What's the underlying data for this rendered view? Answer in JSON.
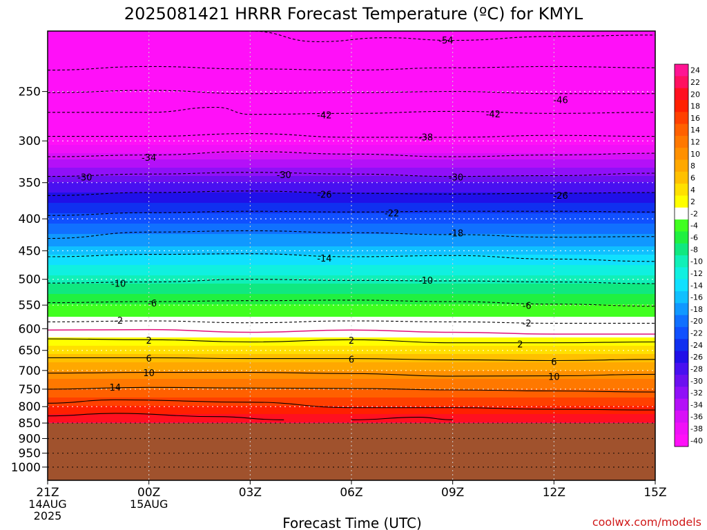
{
  "chart_data": {
    "type": "heatmap",
    "title": "2025081421 HRRR Forecast Temperature (ºC) for KMYL",
    "xlabel": "Forecast Time (UTC)",
    "ylabel": "",
    "y_scale": "log",
    "y_inverted": true,
    "ylim": [
      1050,
      200
    ],
    "xlim": [
      0,
      18
    ],
    "x_ticks": [
      {
        "hour": 0,
        "label": "21Z",
        "sub1": "14AUG",
        "sub2": "2025"
      },
      {
        "hour": 3,
        "label": "00Z",
        "sub1": "15AUG",
        "sub2": ""
      },
      {
        "hour": 6,
        "label": "03Z",
        "sub1": "",
        "sub2": ""
      },
      {
        "hour": 9,
        "label": "06Z",
        "sub1": "",
        "sub2": ""
      },
      {
        "hour": 12,
        "label": "09Z",
        "sub1": "",
        "sub2": ""
      },
      {
        "hour": 15,
        "label": "12Z",
        "sub1": "",
        "sub2": ""
      },
      {
        "hour": 18,
        "label": "15Z",
        "sub1": "",
        "sub2": ""
      }
    ],
    "y_ticks": [
      250,
      300,
      350,
      400,
      450,
      500,
      550,
      600,
      650,
      700,
      750,
      800,
      850,
      900,
      950,
      1000
    ],
    "grid": true,
    "surface_pressure_hpa": 850,
    "surface_color": "#a0522d",
    "temperature_profile": {
      "pressure": [
        200,
        250,
        300,
        350,
        400,
        450,
        500,
        550,
        600,
        650,
        700,
        750,
        800,
        850
      ],
      "temperature": [
        -55,
        -47,
        -39,
        -28,
        -21,
        -15,
        -9,
        -4,
        0,
        5,
        10,
        14,
        18,
        22
      ]
    },
    "contours": [
      {
        "level": -54,
        "style": "dashed",
        "points": [
          [
            6,
            200
          ],
          [
            8,
            208
          ],
          [
            10,
            205
          ],
          [
            12,
            207
          ],
          [
            15,
            204
          ],
          [
            18,
            203
          ]
        ]
      },
      {
        "level": -50,
        "style": "dashed",
        "points": [
          [
            0,
            231
          ],
          [
            3,
            228
          ],
          [
            6,
            230
          ],
          [
            9,
            231
          ],
          [
            12,
            229
          ],
          [
            15,
            228
          ],
          [
            18,
            229
          ]
        ]
      },
      {
        "level": -46,
        "style": "dashed",
        "points": [
          [
            0,
            251
          ],
          [
            3,
            249
          ],
          [
            6,
            252
          ],
          [
            9,
            251
          ],
          [
            12,
            250
          ],
          [
            15,
            252
          ],
          [
            18,
            252
          ]
        ]
      },
      {
        "level": -42,
        "style": "dashed",
        "points": [
          [
            0,
            270
          ],
          [
            3,
            270
          ],
          [
            5,
            265
          ],
          [
            6,
            272
          ],
          [
            9,
            271
          ],
          [
            12,
            269
          ],
          [
            15,
            271
          ],
          [
            18,
            270
          ]
        ]
      },
      {
        "level": -38,
        "style": "dashed",
        "points": [
          [
            0,
            295
          ],
          [
            3,
            295
          ],
          [
            6,
            292
          ],
          [
            9,
            296
          ],
          [
            12,
            296
          ],
          [
            15,
            294
          ],
          [
            18,
            295
          ]
        ]
      },
      {
        "level": -34,
        "style": "dashed",
        "points": [
          [
            0,
            318
          ],
          [
            3,
            316
          ],
          [
            6,
            312
          ],
          [
            9,
            315
          ],
          [
            12,
            318
          ],
          [
            15,
            316
          ],
          [
            18,
            314
          ]
        ]
      },
      {
        "level": -30,
        "style": "dashed",
        "points": [
          [
            0,
            342
          ],
          [
            3,
            339
          ],
          [
            6,
            337
          ],
          [
            9,
            339
          ],
          [
            12,
            342
          ],
          [
            15,
            341
          ],
          [
            18,
            338
          ]
        ]
      },
      {
        "level": -26,
        "style": "dashed",
        "points": [
          [
            0,
            367
          ],
          [
            3,
            363
          ],
          [
            6,
            361
          ],
          [
            9,
            364
          ],
          [
            12,
            365
          ],
          [
            15,
            364
          ],
          [
            18,
            363
          ]
        ]
      },
      {
        "level": -22,
        "style": "dashed",
        "points": [
          [
            0,
            395
          ],
          [
            3,
            391
          ],
          [
            6,
            389
          ],
          [
            9,
            390
          ],
          [
            12,
            389
          ],
          [
            15,
            389
          ],
          [
            18,
            390
          ]
        ]
      },
      {
        "level": -18,
        "style": "dashed",
        "points": [
          [
            0,
            430
          ],
          [
            3,
            420
          ],
          [
            6,
            418
          ],
          [
            9,
            421
          ],
          [
            12,
            424
          ],
          [
            15,
            428
          ],
          [
            18,
            427
          ]
        ]
      },
      {
        "level": -14,
        "style": "dashed",
        "points": [
          [
            0,
            460
          ],
          [
            3,
            456
          ],
          [
            6,
            455
          ],
          [
            9,
            460
          ],
          [
            12,
            458
          ],
          [
            15,
            464
          ],
          [
            18,
            468
          ]
        ]
      },
      {
        "level": -10,
        "style": "dashed",
        "points": [
          [
            0,
            507
          ],
          [
            3,
            505
          ],
          [
            6,
            500
          ],
          [
            9,
            502
          ],
          [
            12,
            503
          ],
          [
            15,
            505
          ],
          [
            18,
            508
          ]
        ]
      },
      {
        "level": -6,
        "style": "dashed",
        "points": [
          [
            0,
            545
          ],
          [
            3,
            543
          ],
          [
            6,
            541
          ],
          [
            9,
            540
          ],
          [
            12,
            543
          ],
          [
            15,
            548
          ],
          [
            18,
            552
          ]
        ]
      },
      {
        "level": -2,
        "style": "dashed",
        "points": [
          [
            0,
            585
          ],
          [
            3,
            583
          ],
          [
            6,
            587
          ],
          [
            9,
            583
          ],
          [
            12,
            585
          ],
          [
            15,
            588
          ],
          [
            18,
            588
          ]
        ]
      },
      {
        "level": 0,
        "style": "freezing",
        "points": [
          [
            0,
            603
          ],
          [
            3,
            602
          ],
          [
            6,
            608
          ],
          [
            9,
            603
          ],
          [
            12,
            608
          ],
          [
            15,
            612
          ],
          [
            18,
            612
          ]
        ]
      },
      {
        "level": 2,
        "style": "solid",
        "points": [
          [
            0,
            623
          ],
          [
            3,
            625
          ],
          [
            6,
            630
          ],
          [
            9,
            625
          ],
          [
            12,
            632
          ],
          [
            15,
            632
          ],
          [
            18,
            630
          ]
        ]
      },
      {
        "level": 6,
        "style": "solid",
        "points": [
          [
            0,
            668
          ],
          [
            3,
            668
          ],
          [
            6,
            670
          ],
          [
            9,
            670
          ],
          [
            12,
            673
          ],
          [
            15,
            675
          ],
          [
            18,
            672
          ]
        ]
      },
      {
        "level": 10,
        "style": "solid",
        "points": [
          [
            0,
            707
          ],
          [
            3,
            705
          ],
          [
            6,
            705
          ],
          [
            9,
            708
          ],
          [
            12,
            715
          ],
          [
            15,
            714
          ],
          [
            18,
            710
          ]
        ]
      },
      {
        "level": 14,
        "style": "solid",
        "points": [
          [
            0,
            750
          ],
          [
            3,
            745
          ],
          [
            6,
            747
          ],
          [
            9,
            748
          ],
          [
            12,
            752
          ],
          [
            15,
            755
          ],
          [
            18,
            758
          ]
        ]
      },
      {
        "level": 18,
        "style": "solid",
        "points": [
          [
            0,
            790
          ],
          [
            2,
            780
          ],
          [
            6,
            787
          ],
          [
            9,
            803
          ],
          [
            12,
            803
          ],
          [
            15,
            808
          ],
          [
            18,
            810
          ]
        ]
      },
      {
        "level": 22,
        "style": "solid",
        "points": [
          [
            0,
            828
          ],
          [
            2,
            820
          ],
          [
            5,
            830
          ],
          [
            7,
            840
          ]
        ]
      },
      {
        "level": 22,
        "style": "solid",
        "points": [
          [
            9,
            840
          ],
          [
            11,
            832
          ],
          [
            12,
            840
          ]
        ]
      }
    ],
    "contour_labels": [
      {
        "text": "-54",
        "hour": 11.8,
        "p": 207
      },
      {
        "text": "-46",
        "hour": 15.2,
        "p": 258
      },
      {
        "text": "-42",
        "hour": 8.2,
        "p": 273
      },
      {
        "text": "-42",
        "hour": 13.2,
        "p": 272
      },
      {
        "text": "-38",
        "hour": 11.2,
        "p": 296
      },
      {
        "text": "-34",
        "hour": 3,
        "p": 319
      },
      {
        "text": "-30",
        "hour": 1.1,
        "p": 343
      },
      {
        "text": "-30",
        "hour": 7,
        "p": 340
      },
      {
        "text": "-30",
        "hour": 12.1,
        "p": 343
      },
      {
        "text": "-26",
        "hour": 8.2,
        "p": 366
      },
      {
        "text": "-26",
        "hour": 15.2,
        "p": 367
      },
      {
        "text": "-22",
        "hour": 10.2,
        "p": 392
      },
      {
        "text": "-18",
        "hour": 12.1,
        "p": 422
      },
      {
        "text": "-14",
        "hour": 8.2,
        "p": 463
      },
      {
        "text": "-10",
        "hour": 2.1,
        "p": 508
      },
      {
        "text": "-10",
        "hour": 11.2,
        "p": 502
      },
      {
        "text": "-6",
        "hour": 3.1,
        "p": 546
      },
      {
        "text": "-6",
        "hour": 14.2,
        "p": 551
      },
      {
        "text": "-2",
        "hour": 2.1,
        "p": 582
      },
      {
        "text": "-2",
        "hour": 14.2,
        "p": 588
      },
      {
        "text": "2",
        "hour": 3,
        "p": 627
      },
      {
        "text": "2",
        "hour": 9,
        "p": 627
      },
      {
        "text": "2",
        "hour": 14,
        "p": 636
      },
      {
        "text": "6",
        "hour": 3,
        "p": 670
      },
      {
        "text": "6",
        "hour": 9,
        "p": 672
      },
      {
        "text": "6",
        "hour": 15,
        "p": 678
      },
      {
        "text": "10",
        "hour": 3,
        "p": 707
      },
      {
        "text": "10",
        "hour": 15,
        "p": 717
      },
      {
        "text": "14",
        "hour": 2,
        "p": 745
      }
    ],
    "colorbar": {
      "levels": [
        24,
        22,
        20,
        18,
        16,
        14,
        12,
        10,
        8,
        6,
        4,
        2,
        -2,
        -4,
        -6,
        -8,
        -10,
        -12,
        -14,
        -16,
        -18,
        -20,
        -22,
        -24,
        -26,
        -28,
        -30,
        -32,
        -34,
        -36,
        -38,
        -40
      ],
      "colors": [
        "#ff1493",
        "#ff1060",
        "#ff1020",
        "#ff2000",
        "#ff4000",
        "#ff6000",
        "#ff7800",
        "#ff9000",
        "#ffa800",
        "#ffc000",
        "#ffe000",
        "#ffff00",
        "#ffffff",
        "#40ff20",
        "#20f040",
        "#10e880",
        "#10f0b8",
        "#10f0e0",
        "#10e0ff",
        "#10c0ff",
        "#1098ff",
        "#1070ff",
        "#1050ff",
        "#1030f0",
        "#2010e8",
        "#4810f0",
        "#6c10f0",
        "#9010f8",
        "#b410f8",
        "#d810f8",
        "#f010f8",
        "#ff10f8"
      ]
    },
    "credit": "coolwx.com/models"
  }
}
